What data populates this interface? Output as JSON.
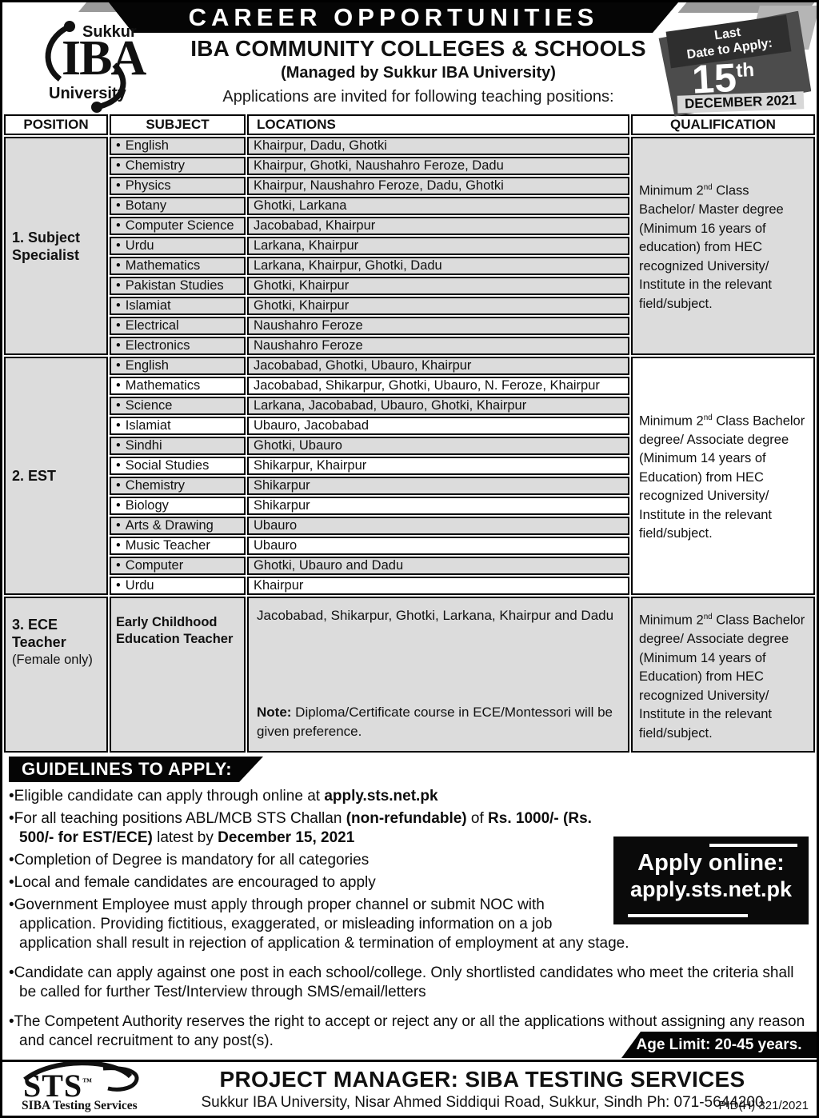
{
  "page": {
    "banner": "CAREER OPPORTUNITIES",
    "logo": {
      "top": "Sukkur",
      "mid": "IBA",
      "bottom": "University"
    },
    "title": "IBA COMMUNITY COLLEGES & SCHOOLS",
    "subtitle": "(Managed by Sukkur IBA University)",
    "intro": "Applications are invited for following teaching positions:",
    "date_badge": {
      "label_line1": "Last",
      "label_line2": "Date to Apply:",
      "day": "15",
      "suffix": "th",
      "month_year": "DECEMBER 2021"
    }
  },
  "table": {
    "headers": [
      "POSITION",
      "SUBJECT",
      "LOCATIONS",
      "QUALIFICATION"
    ],
    "sections": [
      {
        "position": "1. Subject Specialist",
        "position_note": "",
        "rows": [
          {
            "subject": "English",
            "locations": "Khairpur, Dadu, Ghotki"
          },
          {
            "subject": "Chemistry",
            "locations": "Khairpur, Ghotki, Naushahro Feroze, Dadu"
          },
          {
            "subject": "Physics",
            "locations": "Khairpur, Naushahro Feroze, Dadu, Ghotki"
          },
          {
            "subject": "Botany",
            "locations": "Ghotki, Larkana"
          },
          {
            "subject": "Computer Science",
            "locations": "Jacobabad, Khairpur"
          },
          {
            "subject": "Urdu",
            "locations": "Larkana, Khairpur"
          },
          {
            "subject": "Mathematics",
            "locations": "Larkana, Khairpur, Ghotki, Dadu"
          },
          {
            "subject": "Pakistan Studies",
            "locations": "Ghotki, Khairpur"
          },
          {
            "subject": "Islamiat",
            "locations": "Ghotki, Khairpur"
          },
          {
            "subject": "Electrical",
            "locations": "Naushahro Feroze"
          },
          {
            "subject": "Electronics",
            "locations": "Naushahro Feroze"
          }
        ],
        "qualification": [
          {
            "t": "Minimum 2"
          },
          {
            "t": "nd",
            "sup": true
          },
          {
            "t": " Class Bachelor/ Master degree (Minimum 16 years of education) from HEC recognized University/ Institute in the relevant field/subject."
          }
        ]
      },
      {
        "position": "2. EST",
        "position_note": "",
        "rows": [
          {
            "subject": "English",
            "locations": "Jacobabad, Ghotki, Ubauro, Khairpur"
          },
          {
            "subject": "Mathematics",
            "locations": "Jacobabad, Shikarpur, Ghotki, Ubauro, N. Feroze, Khairpur"
          },
          {
            "subject": "Science",
            "locations": "Larkana, Jacobabad, Ubauro, Ghotki, Khairpur"
          },
          {
            "subject": "Islamiat",
            "locations": "Ubauro, Jacobabad"
          },
          {
            "subject": "Sindhi",
            "locations": "Ghotki, Ubauro"
          },
          {
            "subject": "Social Studies",
            "locations": "Shikarpur, Khairpur"
          },
          {
            "subject": "Chemistry",
            "locations": "Shikarpur"
          },
          {
            "subject": "Biology",
            "locations": "Shikarpur"
          },
          {
            "subject": "Arts & Drawing",
            "locations": "Ubauro"
          },
          {
            "subject": "Music Teacher",
            "locations": "Ubauro"
          },
          {
            "subject": "Computer",
            "locations": "Ghotki, Ubauro and Dadu"
          },
          {
            "subject": "Urdu",
            "locations": "Khairpur"
          }
        ],
        "qualification": [
          {
            "t": "Minimum 2"
          },
          {
            "t": "nd",
            "sup": true
          },
          {
            "t": " Class Bachelor degree/ Associate degree (Minimum 14 years of Education) from HEC recognized University/ Institute in the relevant field/subject."
          }
        ]
      },
      {
        "position": "3. ECE Teacher",
        "position_note": "(Female only)",
        "rows": [
          {
            "subject": "Early Childhood Education Teacher",
            "bold": true,
            "locations": "Jacobabad, Shikarpur, Ghotki, Larkana, Khairpur and Dadu",
            "note": [
              {
                "t": "Note:",
                "b": true
              },
              {
                "t": " Diploma/Certificate course in ECE/Montessori will be given preference."
              }
            ]
          }
        ],
        "qualification": [
          {
            "t": "Minimum 2"
          },
          {
            "t": "nd",
            "sup": true
          },
          {
            "t": " Class Bachelor degree/ Associate degree (Minimum 14 years of Education) from HEC recognized University/ Institute in the relevant field/subject."
          }
        ]
      }
    ]
  },
  "guidelines": {
    "header": "GUIDELINES TO APPLY:",
    "bullets": [
      [
        {
          "t": "Eligible candidate can apply through online at "
        },
        {
          "t": "apply.sts.net.pk",
          "b": true
        }
      ],
      [
        {
          "t": "For all teaching positions ABL/MCB STS Challan "
        },
        {
          "t": "(non-refundable)",
          "b": true
        },
        {
          "t": " of "
        },
        {
          "t": "Rs. 1000/- (Rs. 500/-  for EST/ECE)",
          "b": true
        },
        {
          "t": " latest by "
        },
        {
          "t": "December 15, 2021",
          "b": true
        }
      ],
      [
        {
          "t": "Completion of Degree is mandatory for all categories"
        }
      ],
      [
        {
          "t": "Local and female candidates are encouraged to apply"
        }
      ],
      [
        {
          "t": "Government Employee must apply through proper channel or submit NOC with application. Providing fictitious, exaggerated, or misleading information on a job application shall result in  rejection of application & termination of employment at any stage."
        }
      ],
      [
        {
          "t": "Candidate can apply against one post in each school/college. Only shortlisted candidates who meet the criteria shall be called for further Test/Interview through SMS/email/letters"
        }
      ],
      [
        {
          "t": "The Competent Authority reserves the right to accept or reject any or all the applications without assigning any reason and cancel recruitment to any post(s)."
        }
      ]
    ],
    "apply_line1": "Apply online:",
    "apply_line2": "apply.sts.net.pk",
    "age_limit": "Age Limit: 20-45 years."
  },
  "footer": {
    "logo_text": "STS",
    "logo_tm": "™",
    "logo_sub": "SIBA Testing Services",
    "title": "PROJECT MANAGER: SIBA TESTING SERVICES",
    "address": "Sukkur IBA University, Nisar Ahmed Siddiqui Road, Sukkur, Sindh Ph: 071-5644200",
    "pid": "PID(H) 321/2021"
  }
}
